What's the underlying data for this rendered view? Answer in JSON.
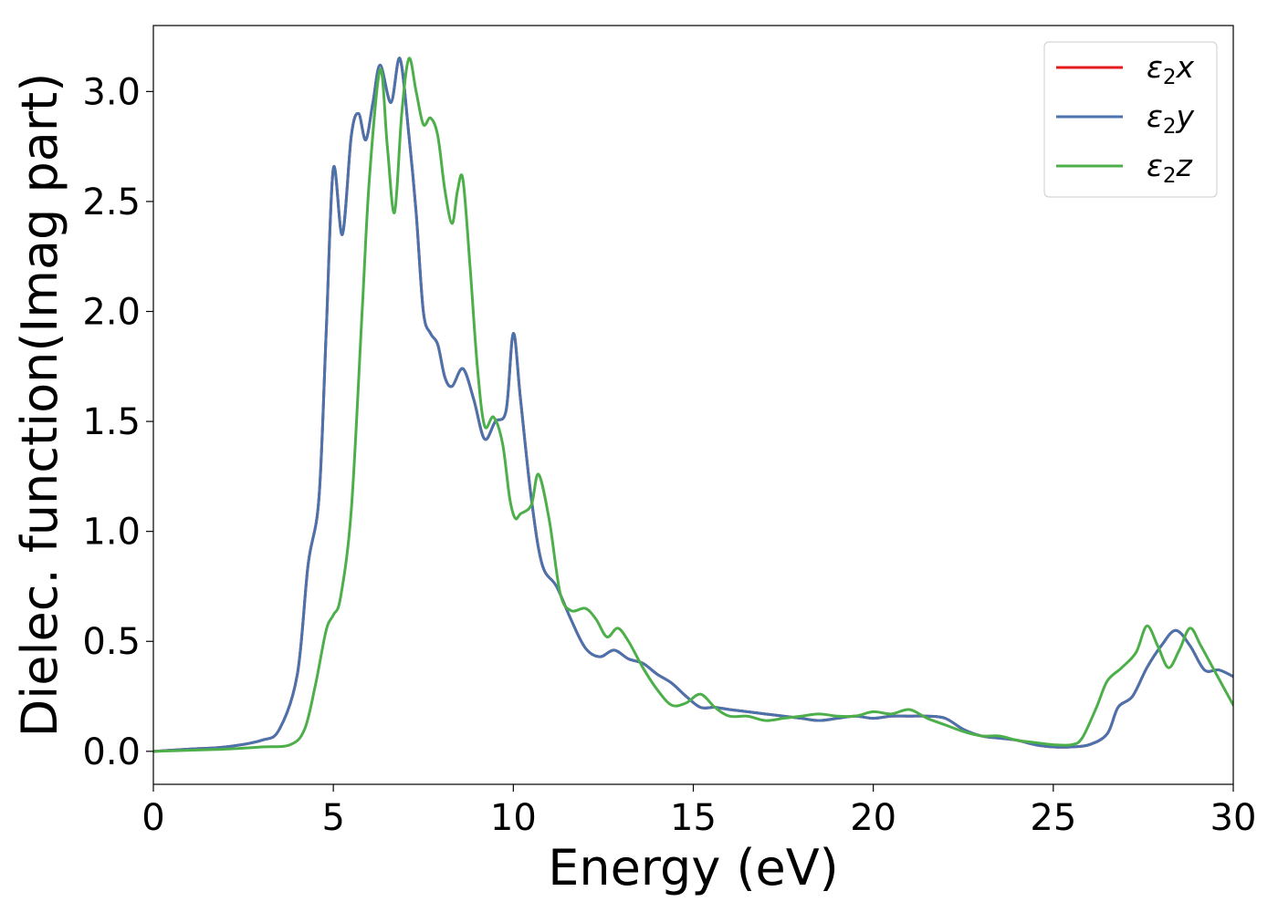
{
  "chart_data": {
    "type": "line",
    "xlabel": "Energy (eV)",
    "ylabel": "Dielec. function(Imag part)",
    "xlim": [
      0,
      30
    ],
    "ylim": [
      -0.15,
      3.3
    ],
    "xticks": [
      0,
      5,
      10,
      15,
      20,
      25,
      30
    ],
    "xtick_labels": [
      "0",
      "5",
      "10",
      "15",
      "20",
      "25",
      "30"
    ],
    "yticks": [
      0.0,
      0.5,
      1.0,
      1.5,
      2.0,
      2.5,
      3.0
    ],
    "ytick_labels": [
      "0.0",
      "0.5",
      "1.0",
      "1.5",
      "2.0",
      "2.5",
      "3.0"
    ],
    "grid": false,
    "legend_position": "top-right",
    "series": [
      {
        "name": "ε2x",
        "legend_base": "ε",
        "legend_sub": "2",
        "legend_var": "x",
        "color": "#e41a1c",
        "x": [
          0,
          1,
          2,
          3,
          3.5,
          4,
          4.3,
          4.6,
          4.8,
          5.0,
          5.25,
          5.5,
          5.7,
          5.9,
          6.1,
          6.3,
          6.6,
          6.85,
          7.1,
          7.3,
          7.5,
          7.7,
          7.9,
          8.1,
          8.3,
          8.6,
          8.9,
          9.2,
          9.5,
          9.8,
          10.0,
          10.2,
          10.5,
          10.8,
          11.2,
          11.6,
          12.0,
          12.4,
          12.8,
          13.2,
          13.6,
          14.0,
          14.4,
          14.8,
          15.2,
          15.6,
          16.0,
          16.5,
          17.0,
          17.5,
          18.0,
          18.5,
          19.0,
          19.5,
          20.0,
          20.5,
          21.0,
          21.5,
          22.0,
          22.5,
          23.0,
          23.5,
          24.0,
          24.5,
          25.0,
          25.5,
          26.0,
          26.5,
          26.8,
          27.2,
          27.6,
          28.0,
          28.4,
          28.8,
          29.2,
          29.6,
          30.0
        ],
        "values": [
          0.0,
          0.01,
          0.02,
          0.05,
          0.1,
          0.35,
          0.85,
          1.15,
          1.9,
          2.65,
          2.35,
          2.8,
          2.9,
          2.78,
          2.95,
          3.12,
          2.95,
          3.15,
          2.8,
          2.45,
          2.0,
          1.9,
          1.85,
          1.7,
          1.66,
          1.74,
          1.6,
          1.42,
          1.5,
          1.55,
          1.9,
          1.6,
          1.15,
          0.85,
          0.75,
          0.6,
          0.47,
          0.43,
          0.46,
          0.42,
          0.4,
          0.35,
          0.31,
          0.25,
          0.2,
          0.2,
          0.19,
          0.18,
          0.17,
          0.16,
          0.15,
          0.14,
          0.15,
          0.16,
          0.15,
          0.16,
          0.16,
          0.16,
          0.15,
          0.1,
          0.07,
          0.06,
          0.05,
          0.03,
          0.02,
          0.02,
          0.03,
          0.08,
          0.2,
          0.25,
          0.38,
          0.48,
          0.55,
          0.48,
          0.37,
          0.37,
          0.34
        ]
      },
      {
        "name": "ε2y",
        "legend_base": "ε",
        "legend_sub": "2",
        "legend_var": "y",
        "color": "#4a73ad",
        "x": [
          0,
          1,
          2,
          3,
          3.5,
          4,
          4.3,
          4.6,
          4.8,
          5.0,
          5.25,
          5.5,
          5.7,
          5.9,
          6.1,
          6.3,
          6.6,
          6.85,
          7.1,
          7.3,
          7.5,
          7.7,
          7.9,
          8.1,
          8.3,
          8.6,
          8.9,
          9.2,
          9.5,
          9.8,
          10.0,
          10.2,
          10.5,
          10.8,
          11.2,
          11.6,
          12.0,
          12.4,
          12.8,
          13.2,
          13.6,
          14.0,
          14.4,
          14.8,
          15.2,
          15.6,
          16.0,
          16.5,
          17.0,
          17.5,
          18.0,
          18.5,
          19.0,
          19.5,
          20.0,
          20.5,
          21.0,
          21.5,
          22.0,
          22.5,
          23.0,
          23.5,
          24.0,
          24.5,
          25.0,
          25.5,
          26.0,
          26.5,
          26.8,
          27.2,
          27.6,
          28.0,
          28.4,
          28.8,
          29.2,
          29.6,
          30.0
        ],
        "values": [
          0.0,
          0.01,
          0.02,
          0.05,
          0.1,
          0.35,
          0.85,
          1.15,
          1.9,
          2.65,
          2.35,
          2.8,
          2.9,
          2.78,
          2.95,
          3.12,
          2.95,
          3.15,
          2.8,
          2.45,
          2.0,
          1.9,
          1.85,
          1.7,
          1.66,
          1.74,
          1.6,
          1.42,
          1.5,
          1.55,
          1.9,
          1.6,
          1.15,
          0.85,
          0.75,
          0.6,
          0.47,
          0.43,
          0.46,
          0.42,
          0.4,
          0.35,
          0.31,
          0.25,
          0.2,
          0.2,
          0.19,
          0.18,
          0.17,
          0.16,
          0.15,
          0.14,
          0.15,
          0.16,
          0.15,
          0.16,
          0.16,
          0.16,
          0.15,
          0.1,
          0.07,
          0.06,
          0.05,
          0.03,
          0.02,
          0.02,
          0.03,
          0.08,
          0.2,
          0.25,
          0.38,
          0.48,
          0.55,
          0.48,
          0.37,
          0.37,
          0.34
        ]
      },
      {
        "name": "ε2z",
        "legend_base": "ε",
        "legend_sub": "2",
        "legend_var": "z",
        "color": "#4daf4a",
        "x": [
          0,
          1,
          2,
          3,
          3.8,
          4.2,
          4.5,
          4.8,
          5.0,
          5.2,
          5.5,
          5.8,
          6.0,
          6.3,
          6.5,
          6.7,
          6.9,
          7.1,
          7.3,
          7.5,
          7.7,
          7.9,
          8.1,
          8.3,
          8.45,
          8.6,
          8.8,
          9.0,
          9.2,
          9.45,
          9.7,
          9.9,
          10.05,
          10.2,
          10.5,
          10.7,
          11.0,
          11.3,
          11.6,
          12.0,
          12.3,
          12.6,
          12.9,
          13.2,
          13.6,
          14.0,
          14.4,
          14.8,
          15.2,
          15.6,
          16.0,
          16.5,
          17.0,
          17.5,
          18.0,
          18.5,
          19.0,
          19.5,
          20.0,
          20.5,
          21.0,
          21.5,
          22.0,
          22.5,
          23.0,
          23.5,
          24.0,
          24.5,
          25.0,
          25.5,
          25.8,
          26.2,
          26.5,
          26.9,
          27.3,
          27.6,
          27.9,
          28.2,
          28.5,
          28.8,
          29.1,
          29.5,
          30.0
        ],
        "values": [
          0.0,
          0.005,
          0.01,
          0.02,
          0.03,
          0.1,
          0.3,
          0.55,
          0.62,
          0.7,
          1.1,
          2.0,
          2.6,
          3.1,
          2.75,
          2.45,
          2.9,
          3.15,
          3.0,
          2.85,
          2.88,
          2.8,
          2.55,
          2.4,
          2.55,
          2.6,
          2.2,
          1.75,
          1.48,
          1.52,
          1.4,
          1.15,
          1.06,
          1.08,
          1.12,
          1.26,
          1.05,
          0.72,
          0.64,
          0.65,
          0.6,
          0.52,
          0.56,
          0.5,
          0.38,
          0.28,
          0.21,
          0.22,
          0.26,
          0.2,
          0.16,
          0.16,
          0.14,
          0.15,
          0.16,
          0.17,
          0.16,
          0.16,
          0.18,
          0.17,
          0.19,
          0.15,
          0.12,
          0.09,
          0.07,
          0.07,
          0.05,
          0.04,
          0.03,
          0.03,
          0.06,
          0.2,
          0.32,
          0.38,
          0.45,
          0.57,
          0.48,
          0.38,
          0.46,
          0.56,
          0.48,
          0.36,
          0.21
        ]
      }
    ]
  }
}
